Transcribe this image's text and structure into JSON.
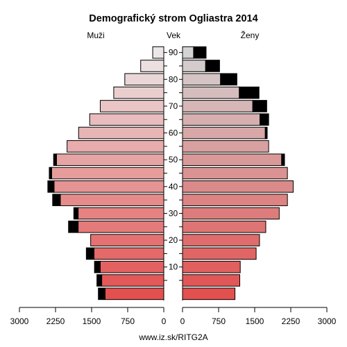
{
  "chart_data": {
    "type": "bar",
    "title": "Demografický strom Ogliastra 2014",
    "left_label": "Muži",
    "center_label": "Vek",
    "right_label": "Ženy",
    "footer": "www.iz.sk/RITG2A",
    "age_groups": [
      "0-4",
      "5-9",
      "10-14",
      "15-19",
      "20-24",
      "25-29",
      "30-34",
      "35-39",
      "40-44",
      "45-49",
      "50-54",
      "55-59",
      "60-64",
      "65-69",
      "70-74",
      "75-79",
      "80-84",
      "85-89",
      "90+"
    ],
    "age_tick_labels": [
      "10",
      "20",
      "30",
      "40",
      "50",
      "60",
      "70",
      "80",
      "90"
    ],
    "x_tick_labels_left": [
      "3000",
      "2250",
      "1500",
      "750",
      "0"
    ],
    "x_tick_labels_right": [
      "0",
      "750",
      "1500",
      "2250",
      "3000"
    ],
    "xlim": [
      0,
      3000
    ],
    "series": [
      {
        "name": "Muži",
        "values": [
          1220,
          1290,
          1320,
          1450,
          1520,
          1780,
          1780,
          2150,
          2280,
          2330,
          2230,
          2010,
          1770,
          1540,
          1320,
          1040,
          810,
          480,
          230
        ],
        "excess": [
          140,
          100,
          120,
          160,
          0,
          200,
          90,
          160,
          130,
          50,
          60,
          0,
          0,
          0,
          0,
          0,
          0,
          0,
          0
        ]
      },
      {
        "name": "Ženy",
        "values": [
          1090,
          1190,
          1200,
          1530,
          1600,
          1730,
          2010,
          2180,
          2300,
          2180,
          2060,
          1790,
          1720,
          1610,
          1460,
          1180,
          790,
          480,
          230
        ],
        "excess": [
          0,
          0,
          0,
          0,
          0,
          0,
          0,
          0,
          0,
          0,
          60,
          0,
          40,
          180,
          290,
          410,
          340,
          290,
          260
        ]
      }
    ]
  }
}
